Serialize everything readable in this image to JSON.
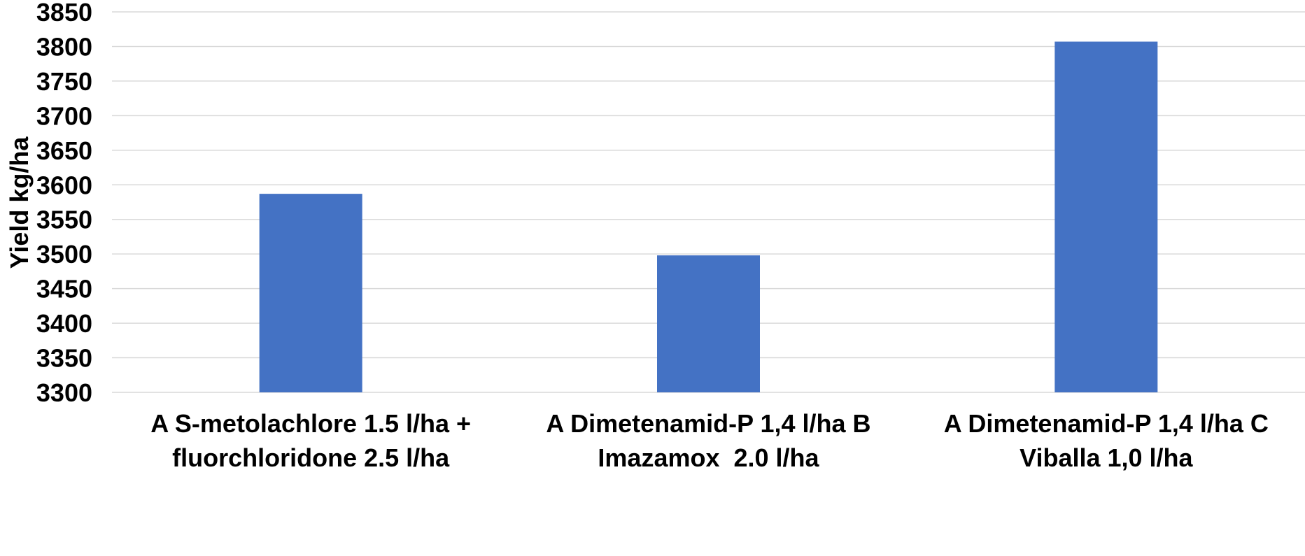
{
  "chart_data": {
    "type": "bar",
    "categories": [
      [
        "A S-metolachlore 1.5 l/ha +",
        "fluorchloridone 2.5 l/ha"
      ],
      [
        "A Dimetenamid-P 1,4 l/ha B",
        "Imazamox  2.0 l/ha"
      ],
      [
        "A Dimetenamid-P 1,4 l/ha C",
        "Viballa 1,0 l/ha"
      ]
    ],
    "values": [
      3587,
      3498,
      3807
    ],
    "title": "",
    "xlabel": "",
    "ylabel": "Yield kg/ha",
    "ylim": [
      3300,
      3850
    ],
    "yticks": [
      3300,
      3350,
      3400,
      3450,
      3500,
      3550,
      3600,
      3650,
      3700,
      3750,
      3800,
      3850
    ],
    "grid": true,
    "legend": "none",
    "bar_color": "#4472c4",
    "gridline_color": "#d9d9d9"
  }
}
